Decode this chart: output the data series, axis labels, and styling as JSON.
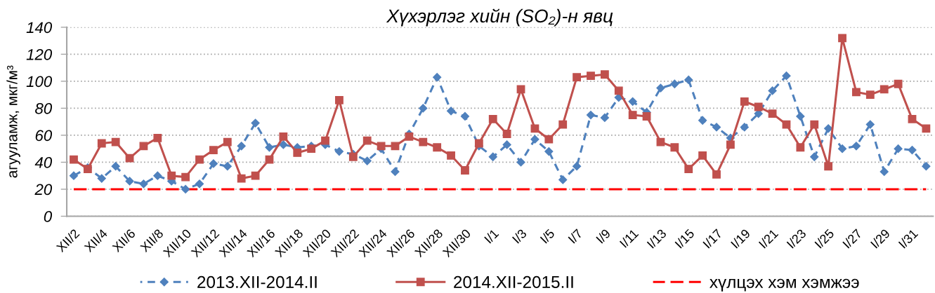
{
  "chart_data": {
    "type": "line",
    "title": "Хүхэрлэг хийн (SO₂)-н явц",
    "ylabel": "агууламж, мкг/м³",
    "categories": [
      "XII/2",
      null,
      "XII/4",
      null,
      "XII/6",
      null,
      "XII/8",
      null,
      "XII/10",
      null,
      "XII/12",
      null,
      "XII/14",
      null,
      "XII/16",
      null,
      "XII/18",
      null,
      "XII/20",
      null,
      "XII/22",
      null,
      "XII/24",
      null,
      "XII/26",
      null,
      "XII/28",
      null,
      "XII/30",
      null,
      "I/1",
      null,
      "I/3",
      null,
      "I/5",
      null,
      "I/7",
      null,
      "I/9",
      null,
      "I/11",
      null,
      "I/13",
      null,
      "I/15",
      null,
      "I/17",
      null,
      "I/19",
      null,
      "I/21",
      null,
      "I/23",
      null,
      "I/25",
      null,
      "I/27",
      null,
      "I/29",
      null,
      "I/31",
      null
    ],
    "series": [
      {
        "name": "2013.XII-2014.II",
        "color": "#4f81bd",
        "marker": "diamond",
        "line_style": "dashed",
        "values": [
          30,
          36,
          28,
          37,
          26,
          24,
          30,
          26,
          20,
          24,
          39,
          37,
          52,
          69,
          51,
          53,
          51,
          52,
          53,
          48,
          46,
          41,
          50,
          33,
          61,
          80,
          103,
          78,
          74,
          52,
          44,
          53,
          40,
          57,
          48,
          27,
          37,
          75,
          73,
          88,
          85,
          77,
          95,
          98,
          101,
          71,
          66,
          58,
          66,
          76,
          93,
          104,
          74,
          44,
          65,
          50,
          52,
          68,
          33,
          50,
          49,
          37
        ]
      },
      {
        "name": "2014.XII-2015.II",
        "color": "#c0504d",
        "marker": "square",
        "line_style": "solid",
        "values": [
          42,
          35,
          54,
          55,
          43,
          52,
          58,
          30,
          29,
          42,
          49,
          55,
          28,
          30,
          42,
          59,
          47,
          50,
          56,
          86,
          44,
          56,
          52,
          52,
          59,
          55,
          51,
          45,
          34,
          54,
          72,
          61,
          94,
          65,
          57,
          68,
          103,
          104,
          105,
          93,
          75,
          74,
          55,
          51,
          35,
          45,
          31,
          53,
          85,
          81,
          76,
          68,
          51,
          68,
          37,
          132,
          92,
          90,
          94,
          98,
          72,
          65
        ]
      }
    ],
    "ylim": [
      0,
      140
    ],
    "yticks": [
      0,
      20,
      40,
      60,
      80,
      100,
      120,
      140
    ],
    "ref_lines": [
      {
        "axis": "y",
        "value": 20,
        "label": "хүлцэх хэм хэмжээ",
        "color": "#ff0000",
        "line_style": "dashed"
      }
    ],
    "grid": "y",
    "legend": "bottom"
  }
}
